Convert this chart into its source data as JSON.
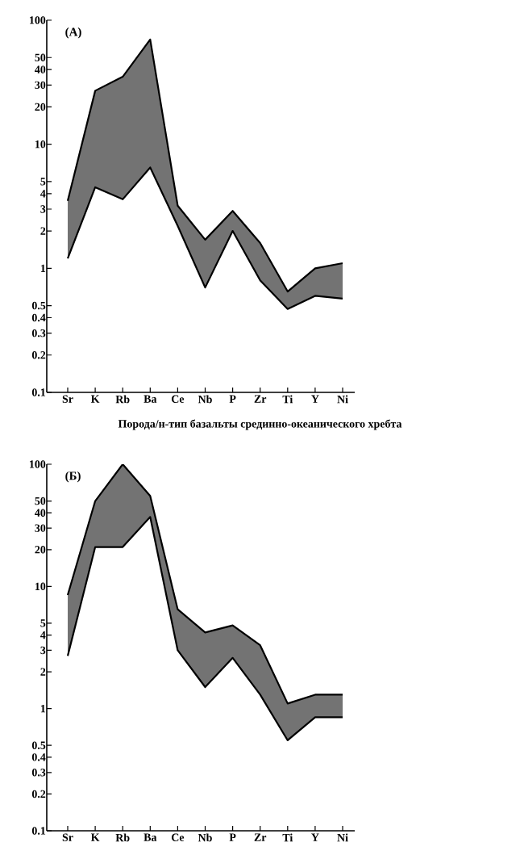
{
  "chart_data": [
    {
      "type": "line",
      "title": "(A)",
      "xlabel": "Порода/н-тип базальты срединно-океанического хребта",
      "categories": [
        "Sr",
        "K",
        "Rb",
        "Ba",
        "Ce",
        "Nb",
        "P",
        "Zr",
        "Ti",
        "Y",
        "Ni"
      ],
      "series": [
        {
          "color": "#000000",
          "values": [
            1.2,
            4.5,
            3.6,
            6.5,
            2.2,
            0.7,
            2.0,
            0.8,
            0.47,
            0.6,
            0.57
          ]
        },
        {
          "color": "#000000",
          "values": [
            3.5,
            27,
            35,
            70,
            3.2,
            1.7,
            2.9,
            1.6,
            0.65,
            1.0,
            1.1
          ],
          "lower": [
            1.2,
            4.5,
            3.6,
            6.5,
            2.2,
            0.7,
            2.0,
            0.8,
            0.47,
            0.6,
            0.57
          ],
          "upper": [
            3.5,
            27,
            35,
            70,
            3.2,
            1.7,
            2.9,
            1.6,
            0.65,
            1.0,
            1.1
          ]
        }
      ],
      "log": "y",
      "ylim": [
        0.1,
        100
      ],
      "yticks": [
        0.1,
        0.2,
        0.3,
        0.4,
        0.5,
        1,
        2,
        3,
        4,
        5,
        10,
        20,
        30,
        40,
        50,
        100
      ]
    },
    {
      "type": "line",
      "title": "(Б)",
      "categories": [
        "Sr",
        "K",
        "Rb",
        "Ba",
        "Ce",
        "Nb",
        "P",
        "Zr",
        "Ti",
        "Y",
        "Ni"
      ],
      "series": [
        {
          "color": "#000000",
          "values": [
            2.7,
            21,
            21,
            37,
            3.0,
            1.5,
            2.6,
            1.3,
            0.55,
            0.85,
            0.85
          ]
        },
        {
          "color": "#000000",
          "values": [
            8.5,
            50,
            100,
            55,
            6.5,
            4.2,
            4.8,
            3.3,
            1.1,
            1.3,
            1.3
          ],
          "lower": [
            2.7,
            21,
            21,
            37,
            3.0,
            1.5,
            2.6,
            1.3,
            0.55,
            0.85,
            0.85
          ],
          "upper": [
            8.5,
            50,
            100,
            55,
            6.5,
            4.2,
            4.8,
            3.3,
            1.1,
            1.3,
            1.3
          ]
        }
      ],
      "log": "y",
      "ylim": [
        0.1,
        100
      ],
      "yticks": [
        0.1,
        0.2,
        0.3,
        0.4,
        0.5,
        1,
        2,
        3,
        4,
        5,
        10,
        20,
        30,
        40,
        50,
        100
      ]
    }
  ]
}
